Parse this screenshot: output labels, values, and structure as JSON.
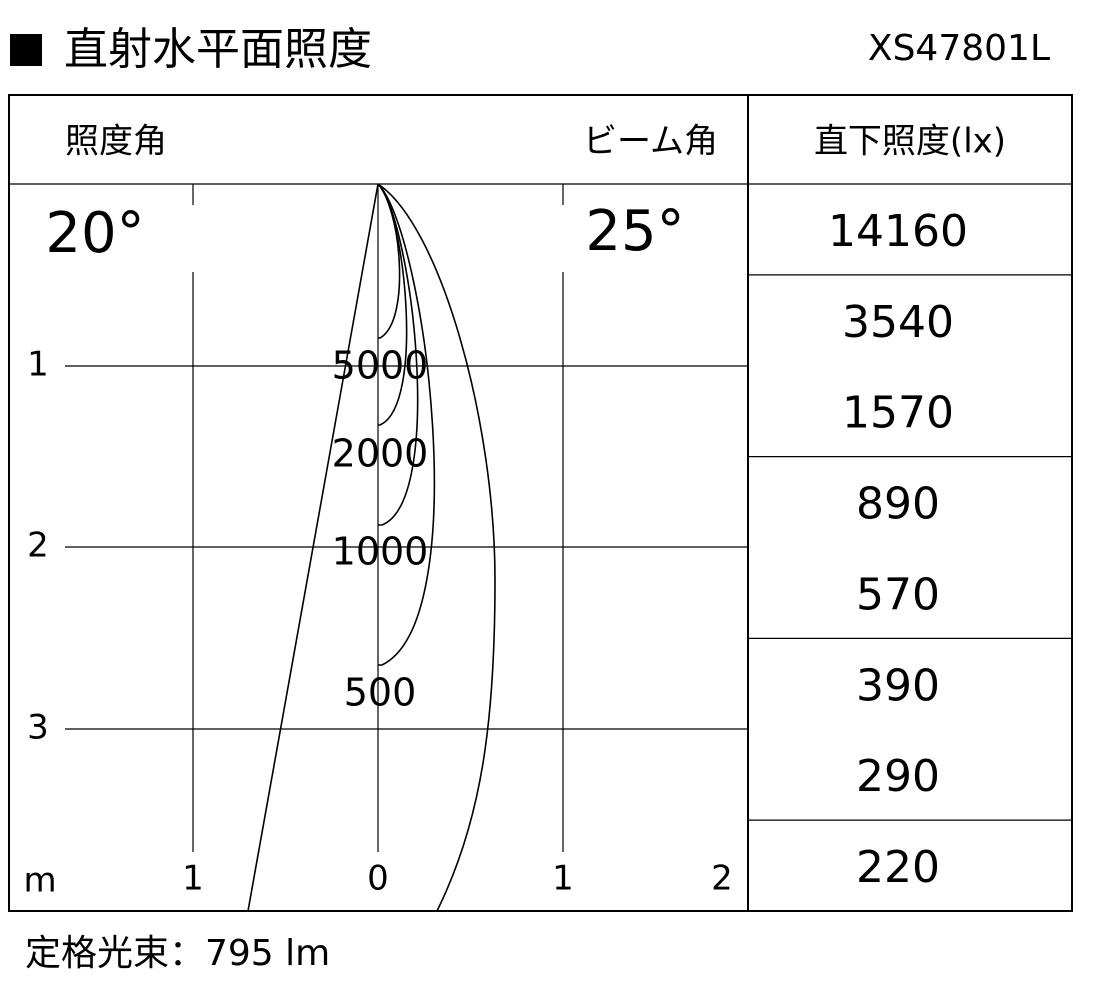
{
  "header": {
    "title": "直射水平面照度",
    "model": "XS47801L"
  },
  "diagram": {
    "left_header": "照度角",
    "right_header": "ビーム角",
    "illuminance_angle": "20°",
    "beam_angle": "25°",
    "y_labels": [
      "1",
      "2",
      "3"
    ],
    "unit": "m",
    "x_labels": [
      "1",
      "0",
      "1",
      "2"
    ],
    "contour_labels": [
      "5000",
      "2000",
      "1000",
      "500"
    ]
  },
  "table": {
    "header": "直下照度(lx)",
    "rows": [
      "14160",
      "3540",
      "1570",
      "890",
      "570",
      "390",
      "290",
      "220"
    ]
  },
  "footer": "定格光束：795 lm"
}
